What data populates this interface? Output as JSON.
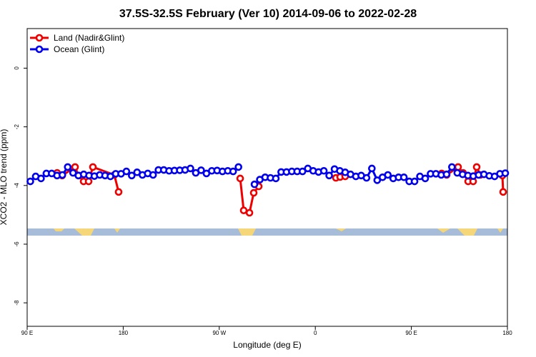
{
  "chart_data": {
    "type": "line",
    "title": "37.5S-32.5S February (Ver 10)   2014-09-06 to 2022-02-28",
    "x_label": "Longitude (deg E)",
    "y_label": "XCO2 - MLO trend (ppm)",
    "xlim": [
      90,
      540
    ],
    "ylim": [
      -8.8,
      1.35
    ],
    "xticks": [
      {
        "value": 90,
        "label": "90 E"
      },
      {
        "value": 180,
        "label": "180"
      },
      {
        "value": 270,
        "label": "90 W"
      },
      {
        "value": 360,
        "label": "0"
      },
      {
        "value": 450,
        "label": "90 E"
      },
      {
        "value": 540,
        "label": "180"
      }
    ],
    "yticks": [
      0,
      -2,
      -4,
      -6,
      -8
    ],
    "legend_position": "upper-left",
    "series": [
      {
        "name": "Land (Nadir&Glint)",
        "color": "#ee0000",
        "x": [
          118.1,
          122.8,
          134.9,
          138.2,
          142.9,
          147.6,
          151.6,
          171.7,
          175.7,
          176.5,
          289.6,
          292.9,
          298.3,
          302.3,
          307.0,
          308,
          379.3,
          383.3,
          388.0,
          390,
          478.4,
          483.1,
          493.8,
          498.5,
          503.2,
          507.9,
          511.2,
          514.6,
          520,
          535.3,
          536.0
        ],
        "values": [
          -3.57,
          -3.66,
          -3.37,
          -3.66,
          -3.86,
          -3.86,
          -3.37,
          -3.64,
          -4.22,
          null,
          -3.76,
          -4.85,
          -4.93,
          -4.25,
          -4.03,
          null,
          -3.74,
          -3.71,
          -3.69,
          null,
          -3.59,
          -3.64,
          -3.37,
          -3.57,
          -3.86,
          -3.86,
          -3.37,
          -3.64,
          null,
          -3.66,
          -4.22
        ]
      },
      {
        "name": "Ocean (Glint)",
        "color": "#0000ee",
        "x": [
          93,
          98,
          103,
          108,
          113,
          118,
          123,
          128,
          133,
          138,
          143,
          148,
          153,
          158,
          163,
          168,
          173,
          178,
          183,
          188,
          193,
          198,
          203,
          208,
          213,
          218,
          223,
          228,
          233,
          238,
          243,
          248,
          253,
          258,
          263,
          268,
          273,
          278,
          283,
          288,
          293,
          298,
          303,
          308,
          313,
          318,
          323,
          328,
          333,
          338,
          343,
          348,
          353,
          358,
          363,
          368,
          373,
          378,
          383,
          388,
          393,
          398,
          403,
          408,
          413,
          418,
          423,
          428,
          433,
          438,
          443,
          448,
          453,
          458,
          463,
          468,
          473,
          478,
          483,
          488,
          493,
          498,
          503,
          508,
          513,
          518,
          523,
          528,
          533,
          538
        ],
        "values": [
          -3.86,
          -3.69,
          -3.76,
          -3.59,
          -3.59,
          -3.66,
          -3.64,
          -3.37,
          -3.57,
          -3.66,
          -3.62,
          -3.66,
          -3.68,
          -3.64,
          -3.66,
          -3.69,
          -3.6,
          -3.6,
          -3.52,
          -3.66,
          -3.55,
          -3.64,
          -3.59,
          -3.64,
          -3.47,
          -3.47,
          -3.5,
          -3.49,
          -3.48,
          -3.47,
          -3.42,
          -3.57,
          -3.48,
          -3.59,
          -3.5,
          -3.49,
          -3.52,
          -3.5,
          -3.52,
          -3.37,
          null,
          null,
          -3.96,
          -3.8,
          -3.72,
          -3.74,
          -3.76,
          -3.54,
          -3.54,
          -3.52,
          -3.52,
          -3.52,
          -3.42,
          -3.5,
          -3.54,
          -3.5,
          -3.66,
          -3.44,
          -3.5,
          -3.55,
          -3.62,
          -3.69,
          -3.66,
          -3.74,
          -3.42,
          -3.82,
          -3.72,
          -3.64,
          -3.76,
          -3.72,
          -3.72,
          -3.86,
          -3.86,
          -3.69,
          -3.76,
          -3.6,
          -3.6,
          -3.64,
          -3.62,
          -3.37,
          -3.57,
          -3.62,
          -3.66,
          -3.68,
          -3.64,
          -3.62,
          -3.67,
          -3.69,
          -3.6,
          -3.58
        ]
      }
    ]
  }
}
